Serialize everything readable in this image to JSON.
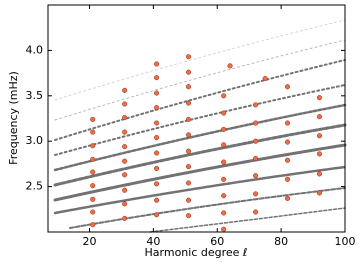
{
  "chart_data": {
    "type": "scatter",
    "x_label": "Harmonic degree ℓ",
    "y_label": "Frequency (mHz)",
    "xlim": [
      7,
      100
    ],
    "ylim": [
      2.0,
      4.5
    ],
    "xticks": [
      20,
      40,
      60,
      80,
      100
    ],
    "yticks": [
      2.5,
      {
        "value": 3,
        "label": "3.0"
      },
      3.5,
      {
        "value": 4,
        "label": "4.0"
      }
    ],
    "series": [
      {
        "color": "#f26b43",
        "x": [
          21,
          21,
          21,
          21,
          21,
          21,
          21,
          21,
          21,
          31,
          31,
          31,
          31,
          31,
          31,
          31,
          31,
          31,
          31,
          41,
          41,
          41,
          41,
          41,
          41,
          41,
          41,
          41,
          41,
          41,
          51,
          51,
          51,
          51,
          51,
          51,
          51,
          51,
          51,
          51,
          51,
          64,
          62,
          62,
          62,
          62,
          62,
          62,
          62,
          62,
          62,
          75,
          72,
          72,
          72,
          72,
          72,
          72,
          72,
          82,
          82,
          82,
          82,
          82,
          82,
          92,
          92,
          92,
          92,
          92,
          92
        ],
        "values": [
          3.24,
          3.1,
          2.95,
          2.8,
          2.66,
          2.51,
          2.36,
          2.22,
          2.08,
          3.56,
          3.41,
          3.26,
          3.1,
          2.94,
          2.78,
          2.63,
          2.46,
          2.31,
          2.15,
          3.85,
          3.7,
          3.53,
          3.37,
          3.2,
          3.04,
          2.87,
          2.7,
          2.53,
          2.35,
          2.19,
          3.93,
          3.76,
          3.6,
          3.42,
          3.24,
          3.07,
          2.89,
          2.72,
          2.54,
          2.35,
          2.18,
          3.83,
          3.5,
          3.31,
          3.13,
          2.96,
          2.77,
          2.58,
          2.4,
          2.21,
          2.03,
          3.69,
          3.4,
          3.2,
          3.0,
          2.81,
          2.62,
          2.42,
          2.22,
          3.6,
          3.2,
          2.99,
          2.79,
          2.58,
          2.37,
          3.48,
          3.27,
          3.06,
          2.86,
          2.64,
          2.43
        ]
      }
    ]
  }
}
